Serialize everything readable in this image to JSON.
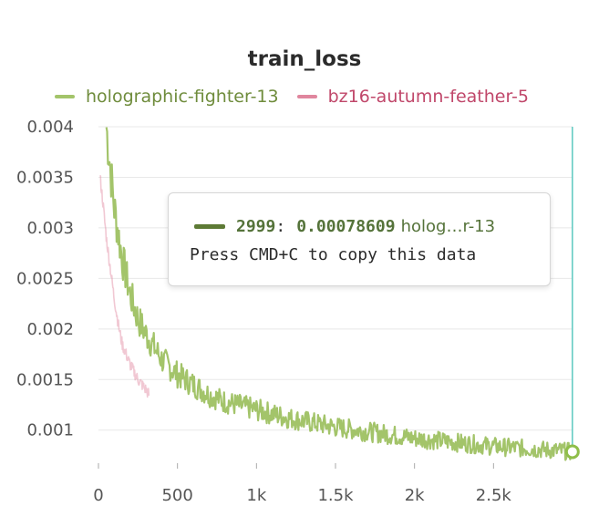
{
  "chart_data": {
    "type": "line",
    "title": "train_loss",
    "xlabel": "",
    "ylabel": "",
    "xlim": [
      0,
      3000
    ],
    "ylim": [
      0.0007,
      0.004
    ],
    "x_ticks": [
      {
        "value": 0,
        "label": "0"
      },
      {
        "value": 500,
        "label": "500"
      },
      {
        "value": 1000,
        "label": "1k"
      },
      {
        "value": 1500,
        "label": "1.5k"
      },
      {
        "value": 2000,
        "label": "2k"
      },
      {
        "value": 2500,
        "label": "2.5k"
      }
    ],
    "y_ticks": [
      {
        "value": 0.001,
        "label": "0.001"
      },
      {
        "value": 0.0015,
        "label": "0.0015"
      },
      {
        "value": 0.002,
        "label": "0.002"
      },
      {
        "value": 0.0025,
        "label": "0.0025"
      },
      {
        "value": 0.003,
        "label": "0.003"
      },
      {
        "value": 0.0035,
        "label": "0.0035"
      },
      {
        "value": 0.004,
        "label": "0.004"
      }
    ],
    "grid": true,
    "legend_position": "top",
    "series": [
      {
        "name": "holographic-fighter-13",
        "color": "#a3c46a",
        "x": [
          50,
          75,
          100,
          150,
          200,
          250,
          300,
          400,
          500,
          600,
          700,
          800,
          1000,
          1200,
          1500,
          2000,
          2500,
          2999
        ],
        "y": [
          0.004,
          0.0036,
          0.0032,
          0.0027,
          0.00235,
          0.0021,
          0.00195,
          0.0017,
          0.00155,
          0.00145,
          0.00135,
          0.00128,
          0.0012,
          0.00112,
          0.00103,
          0.00092,
          0.00084,
          0.00078609
        ]
      },
      {
        "name": "bz16-autumn-feather-5",
        "color": "#e0869e",
        "x": [
          10,
          25,
          50,
          75,
          100,
          125,
          150,
          200,
          250,
          300,
          320
        ],
        "y": [
          0.0035,
          0.0033,
          0.0029,
          0.0026,
          0.0023,
          0.00205,
          0.00185,
          0.00165,
          0.0015,
          0.0014,
          0.00135
        ]
      }
    ]
  },
  "tooltip": {
    "step": "2999",
    "separator": ":",
    "value": "0.00078609",
    "run": "holog…r-13",
    "hint": "Press CMD+C to copy this data",
    "color": "#5d7a35"
  },
  "colors": {
    "hover_line": "#5cc8c0",
    "grid": "#e8e8e8",
    "axis_text": "#555555"
  }
}
